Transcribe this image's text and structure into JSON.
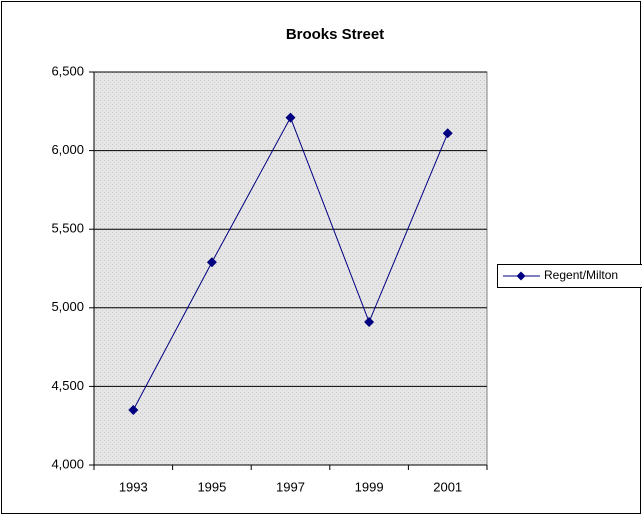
{
  "chart_data": {
    "type": "line",
    "title": "Brooks Street",
    "categories": [
      "1993",
      "1995",
      "1997",
      "1999",
      "2001"
    ],
    "series": [
      {
        "name": "Regent/Milton",
        "color": "#000080",
        "values": [
          4350,
          5290,
          6210,
          4910,
          6110
        ]
      }
    ],
    "ylim": [
      4000,
      6500
    ],
    "yticks": [
      {
        "value": 4000,
        "label": "4,000"
      },
      {
        "value": 4500,
        "label": "4,500"
      },
      {
        "value": 5000,
        "label": "5,000"
      },
      {
        "value": 5500,
        "label": "5,500"
      },
      {
        "value": 6000,
        "label": "6,000"
      },
      {
        "value": 6500,
        "label": "6,500"
      }
    ],
    "grid": true,
    "legend": "right"
  }
}
